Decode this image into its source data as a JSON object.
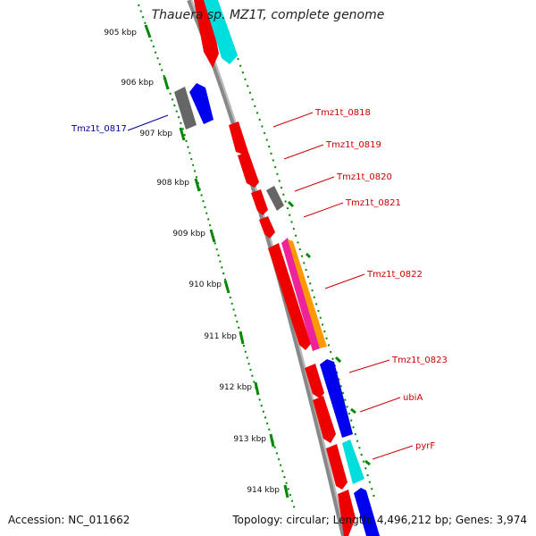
{
  "title": "Thauera sp. MZ1T, complete genome",
  "footer": {
    "accession": "Accession: NC_011662",
    "summary": "Topology: circular; Length: 4,496,212 bp; Genes: 3,974"
  },
  "colors": {
    "cds_red": "#ee0000",
    "cds_blue": "#0000ee",
    "cds_cyan": "#00dddd",
    "cds_gray": "#666666",
    "cds_magenta": "#ee2299",
    "cds_orange": "#ff9900",
    "tick_green": "#008800",
    "label_red": "#cc0000",
    "label_blue": "#000099",
    "backbone_gray": "#888888"
  },
  "ruler": {
    "ticks": [
      {
        "label": "905 kbp"
      },
      {
        "label": "906 kbp"
      },
      {
        "label": "907 kbp"
      },
      {
        "label": "908 kbp"
      },
      {
        "label": "909 kbp"
      },
      {
        "label": "910 kbp"
      },
      {
        "label": "911 kbp"
      },
      {
        "label": "912 kbp"
      },
      {
        "label": "913 kbp"
      },
      {
        "label": "914 kbp"
      }
    ]
  },
  "gene_labels": [
    {
      "label": "Tmz1t_0817",
      "color": "#000099"
    },
    {
      "label": "Tmz1t_0818",
      "color": "#cc0000"
    },
    {
      "label": "Tmz1t_0819",
      "color": "#cc0000"
    },
    {
      "label": "Tmz1t_0820",
      "color": "#cc0000"
    },
    {
      "label": "Tmz1t_0821",
      "color": "#cc0000"
    },
    {
      "label": "Tmz1t_0822",
      "color": "#cc0000"
    },
    {
      "label": "Tmz1t_0823",
      "color": "#cc0000"
    },
    {
      "label": "ubiA",
      "color": "#cc0000"
    },
    {
      "label": "pyrF",
      "color": "#cc0000"
    }
  ]
}
